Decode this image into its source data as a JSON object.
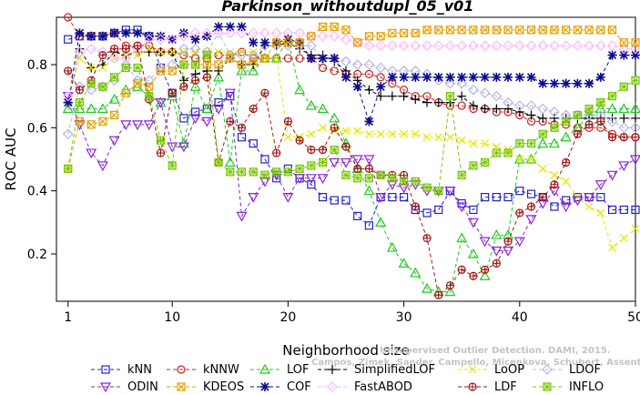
{
  "chart_data": {
    "type": "line",
    "title": "Parkinson_withoutdupl_05_v01",
    "xlabel": "Neighborhood size",
    "ylabel": "ROC AUC",
    "xlim": [
      0,
      50
    ],
    "ylim": [
      0.05,
      0.95
    ],
    "x_ticks": [
      "10",
      "20",
      "30",
      "40",
      "50"
    ],
    "x_ticks_extra": [
      "1"
    ],
    "y_ticks": [
      "0.2",
      "0.4",
      "0.6",
      "0.8"
    ],
    "watermark": [
      "Unsupervised Outlier Detection. DAMI, 2015.",
      "Campos, Zimek, Sander, Campello, Micenkova, Schubert, Assent, Houle"
    ],
    "x": [
      1,
      2,
      3,
      4,
      5,
      6,
      7,
      8,
      9,
      10,
      11,
      12,
      13,
      14,
      15,
      16,
      17,
      18,
      19,
      20,
      21,
      22,
      23,
      24,
      25,
      26,
      27,
      28,
      29,
      30,
      31,
      32,
      33,
      34,
      35,
      36,
      37,
      38,
      39,
      40,
      41,
      42,
      43,
      44,
      45,
      46,
      47,
      48,
      49,
      50
    ],
    "series": [
      {
        "name": "kNN",
        "color": "#2323c8",
        "marker": "square",
        "values": [
          0.88,
          0.89,
          0.89,
          0.89,
          0.9,
          0.91,
          0.91,
          0.89,
          0.79,
          0.71,
          0.63,
          0.65,
          0.66,
          0.68,
          0.7,
          0.57,
          0.55,
          0.5,
          0.44,
          0.47,
          0.44,
          0.42,
          0.38,
          0.37,
          0.37,
          0.32,
          0.29,
          0.38,
          0.38,
          0.38,
          0.34,
          0.33,
          0.34,
          0.4,
          0.36,
          0.34,
          0.38,
          0.38,
          0.38,
          0.4,
          0.39,
          0.38,
          0.35,
          0.37,
          0.38,
          0.38,
          0.38,
          0.34,
          0.34,
          0.34
        ]
      },
      {
        "name": "kNNW",
        "color": "#c82323",
        "marker": "circle",
        "values": [
          0.95,
          0.89,
          0.89,
          0.89,
          0.9,
          0.86,
          0.86,
          0.86,
          0.84,
          0.84,
          0.83,
          0.82,
          0.82,
          0.83,
          0.83,
          0.84,
          0.82,
          0.82,
          0.82,
          0.82,
          0.82,
          0.82,
          0.79,
          0.78,
          0.77,
          0.77,
          0.77,
          0.76,
          0.74,
          0.72,
          0.7,
          0.7,
          0.68,
          0.67,
          0.67,
          0.66,
          0.66,
          0.65,
          0.65,
          0.64,
          0.62,
          0.62,
          0.61,
          0.61,
          0.6,
          0.6,
          0.6,
          0.58,
          0.57,
          0.57
        ]
      },
      {
        "name": "LOF",
        "color": "#23c823",
        "marker": "triangle",
        "values": [
          0.66,
          0.66,
          0.66,
          0.66,
          0.69,
          0.72,
          0.73,
          0.7,
          0.68,
          0.7,
          0.55,
          0.73,
          0.66,
          0.76,
          0.49,
          0.78,
          0.78,
          0.82,
          0.82,
          0.88,
          0.72,
          0.67,
          0.66,
          0.63,
          0.55,
          0.47,
          0.4,
          0.3,
          0.22,
          0.17,
          0.14,
          0.09,
          0.08,
          0.08,
          0.25,
          0.2,
          0.13,
          0.26,
          0.26,
          0.5,
          0.5,
          0.55,
          0.55,
          0.57,
          0.6,
          0.64,
          0.66,
          0.66,
          0.66,
          0.66
        ]
      },
      {
        "name": "SimplifiedLOF",
        "color": "#000000",
        "marker": "plus",
        "values": [
          0.68,
          0.85,
          0.79,
          0.8,
          0.84,
          0.83,
          0.84,
          0.84,
          0.84,
          0.84,
          0.75,
          0.77,
          0.78,
          0.78,
          0.82,
          0.8,
          0.8,
          0.86,
          0.86,
          0.87,
          0.85,
          0.83,
          0.83,
          0.81,
          0.78,
          0.75,
          0.72,
          0.7,
          0.7,
          0.7,
          0.69,
          0.68,
          0.68,
          0.68,
          0.7,
          0.67,
          0.66,
          0.66,
          0.66,
          0.65,
          0.64,
          0.63,
          0.63,
          0.63,
          0.63,
          0.63,
          0.63,
          0.63,
          0.63,
          0.63
        ]
      },
      {
        "name": "LoOP",
        "color": "#e6e600",
        "marker": "x",
        "values": [
          0.68,
          0.82,
          0.79,
          0.79,
          0.82,
          0.83,
          0.83,
          0.85,
          0.84,
          0.84,
          0.84,
          0.84,
          0.84,
          0.84,
          0.84,
          0.84,
          0.84,
          0.82,
          0.82,
          0.57,
          0.57,
          0.58,
          0.6,
          0.59,
          0.59,
          0.59,
          0.58,
          0.58,
          0.58,
          0.58,
          0.58,
          0.57,
          0.57,
          0.57,
          0.56,
          0.55,
          0.55,
          0.54,
          0.53,
          0.5,
          0.5,
          0.47,
          0.45,
          0.43,
          0.38,
          0.35,
          0.33,
          0.22,
          0.25,
          0.28
        ]
      },
      {
        "name": "LDOF",
        "color": "#b4b4e6",
        "marker": "diamond",
        "values": [
          0.58,
          0.73,
          0.72,
          0.73,
          0.75,
          0.8,
          0.75,
          0.75,
          0.79,
          0.8,
          0.85,
          0.85,
          0.84,
          0.9,
          0.83,
          0.83,
          0.83,
          0.86,
          0.86,
          0.86,
          0.86,
          0.86,
          0.82,
          0.82,
          0.81,
          0.8,
          0.8,
          0.79,
          0.78,
          0.78,
          0.78,
          0.77,
          0.75,
          0.74,
          0.74,
          0.72,
          0.71,
          0.7,
          0.68,
          0.67,
          0.67,
          0.66,
          0.65,
          0.64,
          0.64,
          0.64,
          0.64,
          0.62,
          0.6,
          0.6
        ]
      },
      {
        "name": "ODIN",
        "color": "#8c23dc",
        "marker": "triangledown",
        "values": [
          0.7,
          0.61,
          0.52,
          0.48,
          0.56,
          0.61,
          0.61,
          0.61,
          0.68,
          0.54,
          0.54,
          0.63,
          0.62,
          0.66,
          0.71,
          0.32,
          0.38,
          0.43,
          0.45,
          0.38,
          0.44,
          0.44,
          0.44,
          0.49,
          0.49,
          0.5,
          0.5,
          0.38,
          0.42,
          0.41,
          0.42,
          0.4,
          0.4,
          0.4,
          0.35,
          0.3,
          0.24,
          0.21,
          0.21,
          0.24,
          0.31,
          0.36,
          0.4,
          0.35,
          0.37,
          0.38,
          0.42,
          0.45,
          0.48,
          0.5
        ]
      },
      {
        "name": "COF",
        "color": "#0a0a8c",
        "marker": "star",
        "values": [
          0.68,
          0.9,
          0.89,
          0.89,
          0.9,
          0.9,
          0.9,
          0.89,
          0.89,
          0.88,
          0.9,
          0.88,
          0.89,
          0.92,
          0.92,
          0.92,
          0.87,
          0.87,
          0.87,
          0.88,
          0.87,
          0.82,
          0.82,
          0.82,
          0.76,
          0.73,
          0.62,
          0.73,
          0.76,
          0.76,
          0.76,
          0.76,
          0.76,
          0.76,
          0.76,
          0.76,
          0.76,
          0.76,
          0.76,
          0.76,
          0.76,
          0.74,
          0.74,
          0.74,
          0.74,
          0.74,
          0.76,
          0.83,
          0.83,
          0.83
        ]
      },
      {
        "name": "FastABOD",
        "color": "#ffb4ff",
        "marker": "diamond",
        "values": [
          0.7,
          0.84,
          0.85,
          0.84,
          0.82,
          0.82,
          0.85,
          0.88,
          0.88,
          0.88,
          0.89,
          0.9,
          0.9,
          0.9,
          0.9,
          0.9,
          0.9,
          0.9,
          0.9,
          0.9,
          0.9,
          0.89,
          0.89,
          0.89,
          0.88,
          0.87,
          0.86,
          0.86,
          0.86,
          0.86,
          0.86,
          0.86,
          0.86,
          0.86,
          0.86,
          0.86,
          0.86,
          0.86,
          0.86,
          0.86,
          0.86,
          0.86,
          0.86,
          0.86,
          0.86,
          0.86,
          0.86,
          0.86,
          0.85,
          0.85
        ]
      },
      {
        "name": "KDEOS",
        "color": "#e6a000",
        "marker": "squarex",
        "values": [
          0.47,
          0.62,
          0.61,
          0.62,
          0.64,
          0.71,
          0.74,
          0.73,
          0.78,
          0.78,
          0.8,
          0.8,
          0.8,
          0.8,
          0.82,
          0.8,
          0.81,
          0.82,
          0.87,
          0.87,
          0.87,
          0.89,
          0.92,
          0.92,
          0.91,
          0.87,
          0.89,
          0.89,
          0.9,
          0.9,
          0.9,
          0.91,
          0.91,
          0.91,
          0.91,
          0.91,
          0.91,
          0.91,
          0.91,
          0.91,
          0.91,
          0.91,
          0.91,
          0.91,
          0.91,
          0.91,
          0.91,
          0.91,
          0.87,
          0.87
        ]
      },
      {
        "name": "LDF",
        "color": "#a01414",
        "marker": "circleplus",
        "values": [
          0.78,
          0.72,
          0.75,
          0.83,
          0.85,
          0.85,
          0.86,
          0.69,
          0.52,
          0.71,
          0.73,
          0.75,
          0.76,
          0.49,
          0.62,
          0.6,
          0.66,
          0.71,
          0.52,
          0.62,
          0.56,
          0.53,
          0.53,
          0.6,
          0.54,
          0.47,
          0.47,
          0.45,
          0.45,
          0.45,
          0.35,
          0.25,
          0.07,
          0.1,
          0.15,
          0.13,
          0.15,
          0.17,
          0.24,
          0.33,
          0.35,
          0.38,
          0.42,
          0.49,
          0.58,
          0.61,
          0.62,
          0.57,
          0.57,
          0.57
        ]
      },
      {
        "name": "INFLO",
        "color": "#78c800",
        "marker": "asterisk",
        "values": [
          0.47,
          0.68,
          0.74,
          0.73,
          0.76,
          0.79,
          0.79,
          0.7,
          0.56,
          0.48,
          0.8,
          0.8,
          0.83,
          0.49,
          0.46,
          0.46,
          0.46,
          0.45,
          0.46,
          0.46,
          0.47,
          0.48,
          0.49,
          0.53,
          0.45,
          0.44,
          0.44,
          0.45,
          0.44,
          0.43,
          0.43,
          0.41,
          0.4,
          0.7,
          0.45,
          0.48,
          0.49,
          0.52,
          0.52,
          0.55,
          0.55,
          0.58,
          0.6,
          0.62,
          0.64,
          0.66,
          0.68,
          0.7,
          0.73,
          0.75
        ]
      }
    ]
  }
}
